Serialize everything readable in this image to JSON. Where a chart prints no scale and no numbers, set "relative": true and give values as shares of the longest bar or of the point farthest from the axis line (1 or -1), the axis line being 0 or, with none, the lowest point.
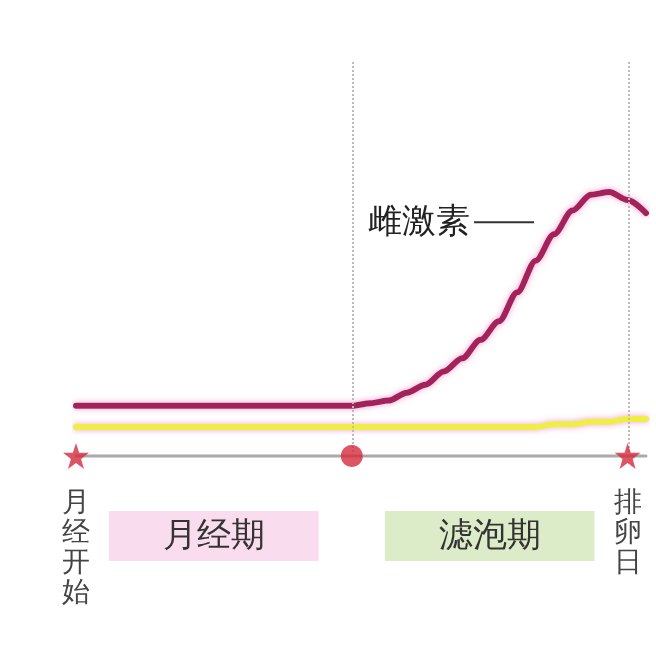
{
  "chart_data": {
    "type": "line",
    "relative": true,
    "legend": false,
    "grid": false,
    "line_style": "solid",
    "categories": [
      "月经开始",
      null,
      null,
      null,
      null,
      null,
      null,
      null,
      null,
      null,
      null,
      null,
      null,
      null,
      null,
      null,
      null,
      null,
      null,
      null,
      null,
      null,
      null,
      null,
      null,
      null,
      null,
      null,
      null,
      null,
      "排卵日",
      null
    ],
    "series": [
      {
        "name": "雌激素",
        "color": "#a3245c",
        "values": [
          0.19,
          0.19,
          0.19,
          0.19,
          0.19,
          0.19,
          0.19,
          0.19,
          0.19,
          0.19,
          0.19,
          0.19,
          0.19,
          0.19,
          0.19,
          0.19,
          0.2,
          0.21,
          0.24,
          0.27,
          0.32,
          0.37,
          0.44,
          0.51,
          0.62,
          0.74,
          0.84,
          0.93,
          0.99,
          1,
          0.97,
          0.92
        ]
      },
      {
        "color": "#eeee44",
        "values": [
          0.11,
          0.11,
          0.11,
          0.11,
          0.11,
          0.11,
          0.11,
          0.11,
          0.11,
          0.11,
          0.11,
          0.11,
          0.11,
          0.11,
          0.11,
          0.11,
          0.11,
          0.11,
          0.11,
          0.11,
          0.11,
          0.11,
          0.11,
          0.11,
          0.11,
          0.11,
          0.12,
          0.12,
          0.13,
          0.13,
          0.14,
          0.14
        ]
      },
      {
        "type": "scatter",
        "marker": "star",
        "color": "#d42a3c",
        "values": [
          0,
          null,
          null,
          null,
          null,
          null,
          null,
          null,
          null,
          null,
          null,
          null,
          null,
          null,
          null,
          null,
          null,
          null,
          null,
          null,
          null,
          null,
          null,
          null,
          null,
          null,
          null,
          null,
          null,
          null,
          0,
          null
        ]
      },
      {
        "type": "scatter",
        "marker": "circle",
        "color": "#d42a3c",
        "values": [
          null,
          null,
          null,
          null,
          null,
          null,
          null,
          null,
          null,
          null,
          null,
          null,
          null,
          null,
          null,
          0,
          null,
          null,
          null,
          null,
          null,
          null,
          null,
          null,
          null,
          null,
          null,
          null,
          null,
          null,
          null,
          null
        ]
      }
    ],
    "annotations": [
      "月经期",
      "滤泡期"
    ]
  }
}
